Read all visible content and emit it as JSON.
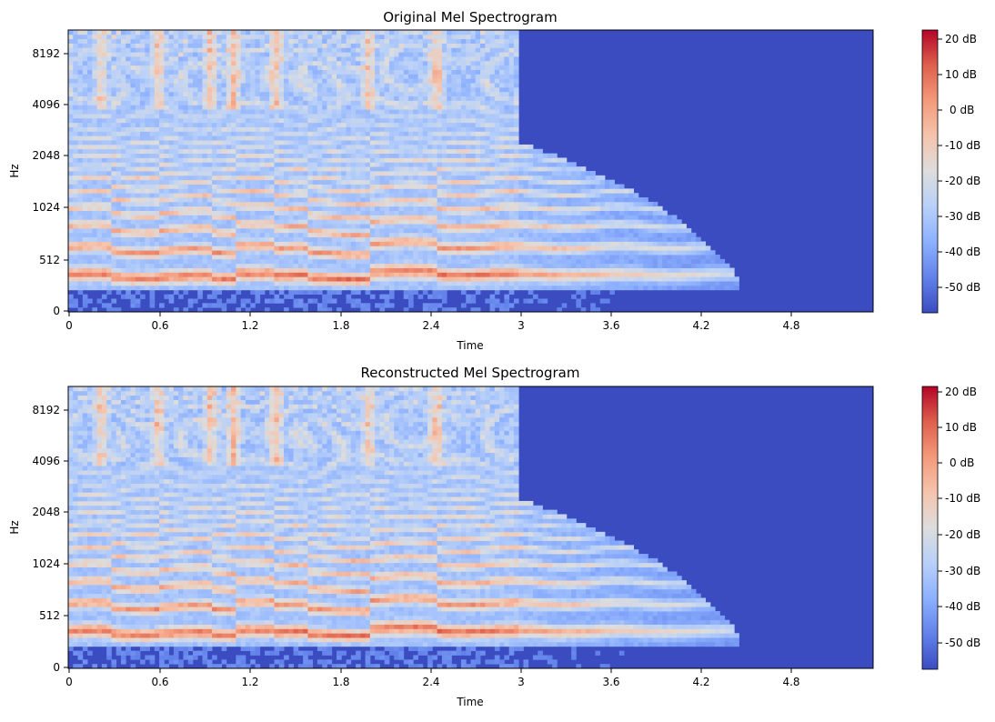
{
  "chart_data": [
    {
      "type": "heatmap",
      "title": "Original Mel Spectrogram",
      "xlabel": "Time",
      "ylabel": "Hz",
      "xlim": [
        0,
        5.35
      ],
      "x_ticks": [
        0,
        0.6,
        1.2,
        1.8,
        2.4,
        3.0,
        3.6,
        4.2,
        4.8
      ],
      "x_tick_labels": [
        "0",
        "0.6",
        "1.2",
        "1.8",
        "2.4",
        "3",
        "3.6",
        "4.2",
        "4.8"
      ],
      "y_scale": "mel",
      "y_ticks_hz": [
        0,
        512,
        1024,
        2048,
        4096,
        8192
      ],
      "y_tick_labels": [
        "0",
        "512",
        "1024",
        "2048",
        "4096",
        "8192"
      ],
      "colormap": "coolwarm",
      "color_range_db": [
        -57,
        23
      ],
      "colorbar_ticks_db": [
        20,
        10,
        0,
        -10,
        -20,
        -30,
        -40,
        -50
      ],
      "colorbar_tick_labels": [
        "20 dB",
        "10 dB",
        "0 dB",
        "-10 dB",
        "-20 dB",
        "-30 dB",
        "-40 dB",
        "-50 dB"
      ],
      "signal_end_s": 3.0,
      "fade_end_s": 4.45,
      "onsets_s": [
        0.22,
        0.6,
        0.95,
        1.1,
        1.38,
        2.0,
        2.45
      ],
      "contour_breaks": [
        {
          "t": 0.0,
          "f0_hz": 640
        },
        {
          "t": 0.3,
          "f0_hz": 580
        },
        {
          "t": 0.6,
          "f0_hz": 600
        },
        {
          "t": 0.95,
          "f0_hz": 560
        },
        {
          "t": 1.1,
          "f0_hz": 680
        },
        {
          "t": 1.38,
          "f0_hz": 620
        },
        {
          "t": 1.6,
          "f0_hz": 560
        },
        {
          "t": 2.0,
          "f0_hz": 700
        },
        {
          "t": 2.45,
          "f0_hz": 640
        },
        {
          "t": 3.0,
          "f0_hz": 640
        }
      ]
    },
    {
      "type": "heatmap",
      "title": "Reconstructed Mel Spectrogram",
      "xlabel": "Time",
      "ylabel": "Hz",
      "xlim": [
        0,
        5.35
      ],
      "x_ticks": [
        0,
        0.6,
        1.2,
        1.8,
        2.4,
        3.0,
        3.6,
        4.2,
        4.8
      ],
      "x_tick_labels": [
        "0",
        "0.6",
        "1.2",
        "1.8",
        "2.4",
        "3",
        "3.6",
        "4.2",
        "4.8"
      ],
      "y_scale": "mel",
      "y_ticks_hz": [
        0,
        512,
        1024,
        2048,
        4096,
        8192
      ],
      "y_tick_labels": [
        "0",
        "512",
        "1024",
        "2048",
        "4096",
        "8192"
      ],
      "colormap": "coolwarm",
      "color_range_db": [
        -57,
        21
      ],
      "colorbar_ticks_db": [
        20,
        10,
        0,
        -10,
        -20,
        -30,
        -40,
        -50
      ],
      "colorbar_tick_labels": [
        "20 dB",
        "10 dB",
        "0 dB",
        "-10 dB",
        "-20 dB",
        "-30 dB",
        "-40 dB",
        "-50 dB"
      ],
      "signal_end_s": 3.0,
      "fade_end_s": 4.45,
      "onsets_s": [
        0.22,
        0.6,
        0.95,
        1.1,
        1.38,
        2.0,
        2.45
      ],
      "contour_breaks": [
        {
          "t": 0.0,
          "f0_hz": 640
        },
        {
          "t": 0.3,
          "f0_hz": 580
        },
        {
          "t": 0.6,
          "f0_hz": 600
        },
        {
          "t": 0.95,
          "f0_hz": 560
        },
        {
          "t": 1.1,
          "f0_hz": 680
        },
        {
          "t": 1.38,
          "f0_hz": 620
        },
        {
          "t": 1.6,
          "f0_hz": 560
        },
        {
          "t": 2.0,
          "f0_hz": 700
        },
        {
          "t": 2.45,
          "f0_hz": 640
        },
        {
          "t": 3.0,
          "f0_hz": 640
        }
      ]
    }
  ]
}
